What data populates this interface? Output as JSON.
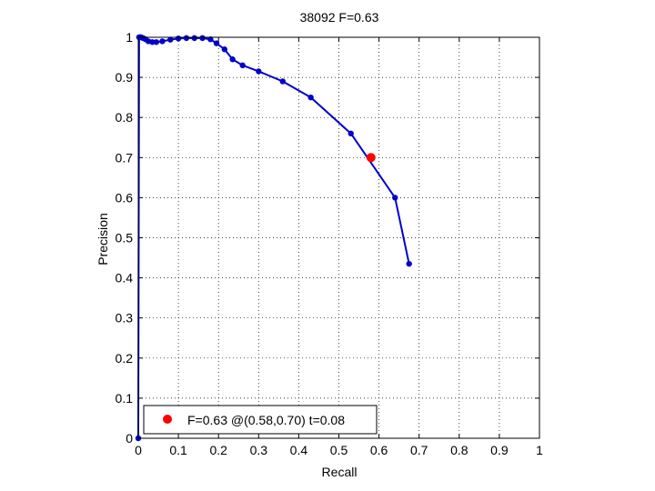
{
  "chart_data": {
    "type": "line",
    "title": "38092 F=0.63",
    "xlabel": "Recall",
    "ylabel": "Precision",
    "xlim": [
      0,
      1
    ],
    "ylim": [
      0,
      1
    ],
    "grid": true,
    "legend_position": "bottom-left",
    "xticks": [
      "0",
      "0.1",
      "0.2",
      "0.3",
      "0.4",
      "0.5",
      "0.6",
      "0.7",
      "0.8",
      "0.9",
      "1"
    ],
    "yticks": [
      "0",
      "0.1",
      "0.2",
      "0.3",
      "0.4",
      "0.5",
      "0.6",
      "0.7",
      "0.8",
      "0.9",
      "1"
    ],
    "series": [
      {
        "color": "#0000cc",
        "x": [
          0.675,
          0.64,
          0.53,
          0.43,
          0.36,
          0.3,
          0.26,
          0.235,
          0.215,
          0.195,
          0.18,
          0.16,
          0.14,
          0.12,
          0.1,
          0.08,
          0.06,
          0.045,
          0.035,
          0.025,
          0.018,
          0.012,
          0.007,
          0.004,
          0.002,
          0.0
        ],
        "y": [
          0.435,
          0.6,
          0.76,
          0.85,
          0.89,
          0.915,
          0.93,
          0.945,
          0.97,
          0.985,
          0.995,
          0.998,
          0.998,
          0.998,
          0.997,
          0.994,
          0.99,
          0.988,
          0.988,
          0.99,
          0.995,
          0.998,
          1.0,
          1.0,
          1.0,
          0.0
        ]
      }
    ],
    "best_point": {
      "x": 0.58,
      "y": 0.7,
      "color": "#ff0000"
    },
    "legend": {
      "text": "F=0.63 @(0.58,0.70) t=0.08"
    }
  }
}
